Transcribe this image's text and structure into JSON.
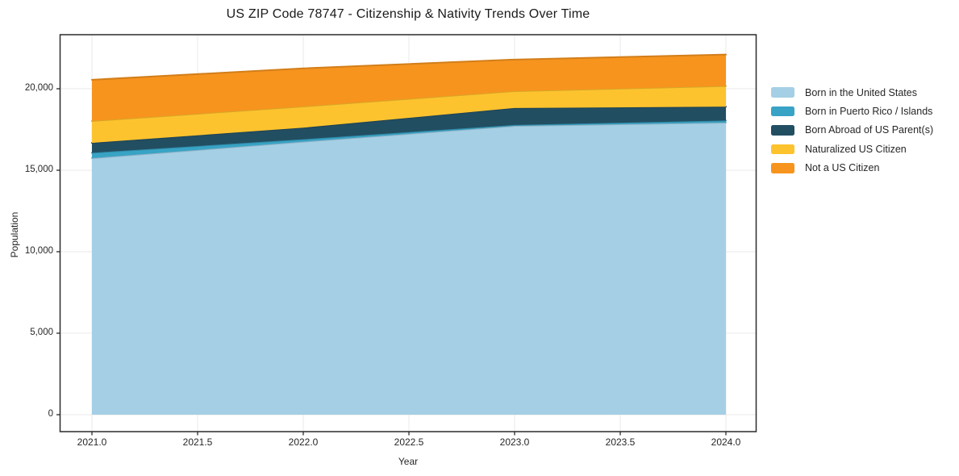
{
  "chart_data": {
    "type": "area",
    "stacked": true,
    "title": "US ZIP Code 78747 - Citizenship & Nativity Trends Over Time",
    "xlabel": "Year",
    "ylabel": "Population",
    "x": [
      2021,
      2022,
      2023,
      2024
    ],
    "series": [
      {
        "name": "Born in the United States",
        "color": "#a5cfe5",
        "values": [
          15740,
          16750,
          17720,
          17920
        ]
      },
      {
        "name": "Born in Puerto Rico / Islands",
        "color": "#38a3c5",
        "values": [
          330,
          150,
          60,
          130
        ]
      },
      {
        "name": "Born Abroad of US Parent(s)",
        "color": "#224e62",
        "values": [
          610,
          710,
          1040,
          850
        ]
      },
      {
        "name": "Naturalized US Citizen",
        "color": "#fdc32e",
        "values": [
          1340,
          1300,
          1030,
          1270
        ]
      },
      {
        "name": "Not a US Citizen",
        "color": "#f7941e",
        "values": [
          2530,
          2340,
          1940,
          1930
        ]
      }
    ],
    "x_tick_values": [
      2021.0,
      2021.5,
      2022.0,
      2022.5,
      2023.0,
      2023.5,
      2024.0
    ],
    "x_tick_labels": [
      "2021.0",
      "2021.5",
      "2022.0",
      "2022.5",
      "2023.0",
      "2023.5",
      "2024.0"
    ],
    "y_tick_values": [
      0,
      5000,
      10000,
      15000,
      20000
    ],
    "y_tick_labels": [
      "0",
      "5,000",
      "10,000",
      "15,000",
      "20,000"
    ],
    "ylim": [
      0,
      23300
    ],
    "grid": true,
    "legend_position": "right-outside"
  },
  "colors": {
    "grid": "#e8e8e8",
    "frame": "#2b2b2b",
    "tick": "#2b2b2b",
    "text": "#262626",
    "background": "#ffffff"
  }
}
